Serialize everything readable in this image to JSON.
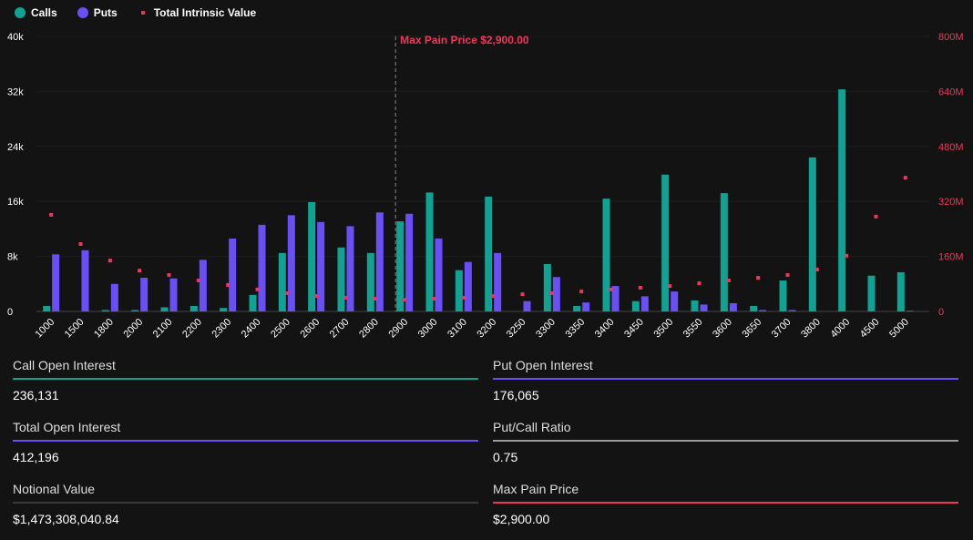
{
  "legend": {
    "calls": "Calls",
    "puts": "Puts",
    "intrinsic": "Total Intrinsic Value"
  },
  "colors": {
    "calls": "#10a394",
    "puts": "#6b4ff6",
    "intrinsic": "#f0365a",
    "background": "#131313"
  },
  "chart_data": {
    "type": "bar",
    "categories": [
      "1000",
      "1500",
      "1800",
      "2000",
      "2100",
      "2200",
      "2300",
      "2400",
      "2500",
      "2600",
      "2700",
      "2800",
      "2900",
      "3000",
      "3100",
      "3200",
      "3250",
      "3300",
      "3350",
      "3400",
      "3450",
      "3500",
      "3550",
      "3600",
      "3650",
      "3700",
      "3800",
      "4000",
      "4500",
      "5000"
    ],
    "series": [
      {
        "name": "Calls",
        "axis": "left",
        "type": "bar",
        "values": [
          0.8,
          0,
          0.2,
          0.2,
          0.6,
          0.8,
          0.5,
          2.4,
          8.5,
          15.9,
          9.3,
          8.5,
          13.1,
          17.3,
          6.0,
          16.7,
          0,
          6.9,
          0.8,
          16.4,
          1.5,
          19.9,
          1.6,
          17.2,
          0.8,
          4.5,
          22.4,
          32.3,
          5.2,
          5.7
        ]
      },
      {
        "name": "Puts",
        "axis": "left",
        "type": "bar",
        "values": [
          8.3,
          8.9,
          4.0,
          4.9,
          4.8,
          7.5,
          10.6,
          12.6,
          14.0,
          13.0,
          12.4,
          14.4,
          14.2,
          10.6,
          7.2,
          8.5,
          1.5,
          5.0,
          1.3,
          3.7,
          2.2,
          2.9,
          1.0,
          1.2,
          0.2,
          0.2,
          0,
          0,
          0,
          0.1
        ]
      },
      {
        "name": "Total Intrinsic Value",
        "axis": "right",
        "type": "scatter",
        "values": [
          281,
          196,
          148,
          119,
          106,
          90,
          77,
          64,
          53,
          45,
          40,
          37,
          34,
          37,
          40,
          45,
          50,
          53,
          58,
          64,
          69,
          74,
          82,
          90,
          98,
          106,
          122,
          162,
          276,
          389
        ]
      }
    ],
    "left_axis": {
      "unit": "k",
      "ylim": [
        0,
        40
      ],
      "ticks": [
        "0",
        "8k",
        "16k",
        "24k",
        "32k",
        "40k"
      ]
    },
    "right_axis": {
      "unit": "M",
      "ylim": [
        0,
        800
      ],
      "ticks": [
        "0",
        "160M",
        "320M",
        "480M",
        "640M",
        "800M"
      ]
    },
    "annotation": {
      "category": "2900",
      "label": "Max Pain Price $2,900.00"
    },
    "grid": true,
    "legend_position": "top-left"
  },
  "stats": [
    {
      "label": "Call Open Interest",
      "value": "236,131",
      "color": "#10a394"
    },
    {
      "label": "Put Open Interest",
      "value": "176,065",
      "color": "#6b4ff6"
    },
    {
      "label": "Total Open Interest",
      "value": "412,196",
      "color": "#6b4ff6"
    },
    {
      "label": "Put/Call Ratio",
      "value": "0.75",
      "color": "#9a9a9a"
    },
    {
      "label": "Notional Value",
      "value": "$1,473,308,040.84",
      "color": "#3a3a3a"
    },
    {
      "label": "Max Pain Price",
      "value": "$2,900.00",
      "color": "#f0365a"
    }
  ]
}
